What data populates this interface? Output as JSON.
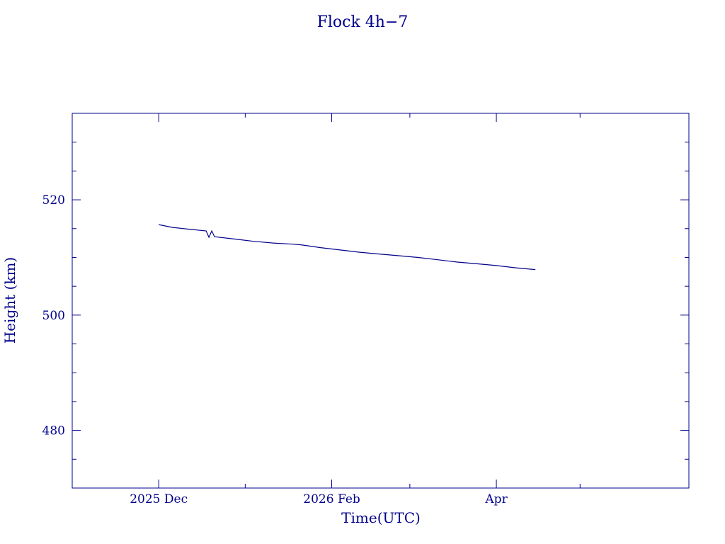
{
  "chart_data": {
    "type": "line",
    "title": "Flock 4h−7",
    "xlabel": "Time(UTC)",
    "ylabel": "Height (km)",
    "color": "#00008b",
    "x_type": "date",
    "xlim": [
      "2025-10-31",
      "2026-06-09"
    ],
    "ylim": [
      470,
      535
    ],
    "x_ticks": [
      {
        "date": "2025-12-01",
        "label": "2025 Dec"
      },
      {
        "date": "2026-02-01",
        "label": "2026 Feb"
      },
      {
        "date": "2026-04-01",
        "label": "Apr"
      }
    ],
    "x_minor_ticks": [
      "2026-01-01",
      "2026-03-01",
      "2026-05-01"
    ],
    "y_ticks": [
      480,
      500,
      520
    ],
    "y_minor_step": 5,
    "series": [
      {
        "x": [
          "2025-12-01",
          "2025-12-06",
          "2025-12-12",
          "2025-12-18",
          "2025-12-19",
          "2025-12-20",
          "2025-12-21",
          "2025-12-28",
          "2026-01-04",
          "2026-01-11",
          "2026-01-18",
          "2026-01-21",
          "2026-01-28",
          "2026-02-04",
          "2026-02-11",
          "2026-02-18",
          "2026-02-25",
          "2026-03-04",
          "2026-03-11",
          "2026-03-18",
          "2026-03-25",
          "2026-04-01",
          "2026-04-08",
          "2026-04-15"
        ],
        "y": [
          515.7,
          515.2,
          514.9,
          514.6,
          513.5,
          514.6,
          513.6,
          513.2,
          512.8,
          512.5,
          512.3,
          512.2,
          511.7,
          511.3,
          510.9,
          510.6,
          510.3,
          510.0,
          509.6,
          509.2,
          508.9,
          508.6,
          508.2,
          507.9
        ]
      }
    ]
  }
}
